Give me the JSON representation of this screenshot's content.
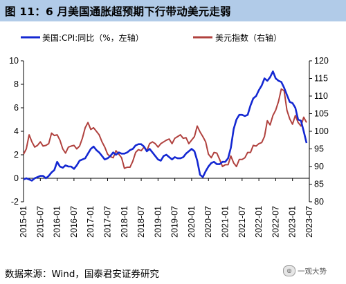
{
  "header": {
    "title": "图 11：6 月美国通胀超预期下行带动美元走弱"
  },
  "source": {
    "text": "数据来源：Wind，国泰君安证券研究"
  },
  "watermark": {
    "text": "一观大势"
  },
  "colors": {
    "header_bg": "#b1cbe8",
    "cpi": "#1428d2",
    "dxy": "#b0413e",
    "axis": "#000000"
  },
  "chart_data": {
    "type": "line",
    "title": "",
    "x_tick_labels": [
      "2015-01",
      "2015-07",
      "2016-01",
      "2016-07",
      "2017-01",
      "2017-07",
      "2018-01",
      "2018-07",
      "2019-01",
      "2019-07",
      "2020-01",
      "2020-07",
      "2021-01",
      "2021-07",
      "2022-01",
      "2022-07",
      "2023-01",
      "2023-07"
    ],
    "x_range": [
      "2015-01",
      "2023-07"
    ],
    "y_left": {
      "range": [
        -2,
        10
      ],
      "ticks": [
        -2,
        0,
        2,
        4,
        6,
        8,
        10
      ]
    },
    "y_right": {
      "range": [
        80,
        120
      ],
      "ticks": [
        80,
        85,
        90,
        95,
        100,
        105,
        110,
        115,
        120
      ]
    },
    "legend_position": "top",
    "grid": false,
    "series": [
      {
        "name": "美国:CPI:同比（%，左轴）",
        "axis": "left",
        "color": "#1428d2",
        "points": [
          [
            "2015-01",
            -0.1
          ],
          [
            "2015-02",
            0.0
          ],
          [
            "2015-03",
            -0.1
          ],
          [
            "2015-04",
            -0.2
          ],
          [
            "2015-05",
            0.0
          ],
          [
            "2015-06",
            0.1
          ],
          [
            "2015-07",
            0.2
          ],
          [
            "2015-08",
            0.2
          ],
          [
            "2015-09",
            0.0
          ],
          [
            "2015-10",
            0.2
          ],
          [
            "2015-11",
            0.5
          ],
          [
            "2015-12",
            0.7
          ],
          [
            "2016-01",
            1.4
          ],
          [
            "2016-02",
            1.0
          ],
          [
            "2016-03",
            0.9
          ],
          [
            "2016-04",
            1.1
          ],
          [
            "2016-05",
            1.0
          ],
          [
            "2016-06",
            1.0
          ],
          [
            "2016-07",
            0.8
          ],
          [
            "2016-08",
            1.1
          ],
          [
            "2016-09",
            1.5
          ],
          [
            "2016-10",
            1.6
          ],
          [
            "2016-11",
            1.7
          ],
          [
            "2016-12",
            2.1
          ],
          [
            "2017-01",
            2.5
          ],
          [
            "2017-02",
            2.7
          ],
          [
            "2017-03",
            2.4
          ],
          [
            "2017-04",
            2.2
          ],
          [
            "2017-05",
            1.9
          ],
          [
            "2017-06",
            1.6
          ],
          [
            "2017-07",
            1.7
          ],
          [
            "2017-08",
            1.9
          ],
          [
            "2017-09",
            2.2
          ],
          [
            "2017-10",
            2.0
          ],
          [
            "2017-11",
            2.2
          ],
          [
            "2017-12",
            2.1
          ],
          [
            "2018-01",
            2.1
          ],
          [
            "2018-02",
            2.2
          ],
          [
            "2018-03",
            2.4
          ],
          [
            "2018-04",
            2.5
          ],
          [
            "2018-05",
            2.8
          ],
          [
            "2018-06",
            2.9
          ],
          [
            "2018-07",
            2.9
          ],
          [
            "2018-08",
            2.7
          ],
          [
            "2018-09",
            2.3
          ],
          [
            "2018-10",
            2.5
          ],
          [
            "2018-11",
            2.2
          ],
          [
            "2018-12",
            1.9
          ],
          [
            "2019-01",
            1.6
          ],
          [
            "2019-02",
            1.5
          ],
          [
            "2019-03",
            1.9
          ],
          [
            "2019-04",
            2.0
          ],
          [
            "2019-05",
            1.8
          ],
          [
            "2019-06",
            1.6
          ],
          [
            "2019-07",
            1.8
          ],
          [
            "2019-08",
            1.7
          ],
          [
            "2019-09",
            1.7
          ],
          [
            "2019-10",
            1.8
          ],
          [
            "2019-11",
            2.1
          ],
          [
            "2019-12",
            2.3
          ],
          [
            "2020-01",
            2.5
          ],
          [
            "2020-02",
            2.3
          ],
          [
            "2020-03",
            1.5
          ],
          [
            "2020-04",
            0.3
          ],
          [
            "2020-05",
            0.1
          ],
          [
            "2020-06",
            0.6
          ],
          [
            "2020-07",
            1.0
          ],
          [
            "2020-08",
            1.3
          ],
          [
            "2020-09",
            1.4
          ],
          [
            "2020-10",
            1.2
          ],
          [
            "2020-11",
            1.2
          ],
          [
            "2020-12",
            1.4
          ],
          [
            "2021-01",
            1.4
          ],
          [
            "2021-02",
            1.7
          ],
          [
            "2021-03",
            2.6
          ],
          [
            "2021-04",
            4.2
          ],
          [
            "2021-05",
            5.0
          ],
          [
            "2021-06",
            5.4
          ],
          [
            "2021-07",
            5.4
          ],
          [
            "2021-08",
            5.3
          ],
          [
            "2021-09",
            5.4
          ],
          [
            "2021-10",
            6.2
          ],
          [
            "2021-11",
            6.8
          ],
          [
            "2021-12",
            7.0
          ],
          [
            "2022-01",
            7.5
          ],
          [
            "2022-02",
            7.9
          ],
          [
            "2022-03",
            8.5
          ],
          [
            "2022-04",
            8.3
          ],
          [
            "2022-05",
            8.6
          ],
          [
            "2022-06",
            9.1
          ],
          [
            "2022-07",
            8.5
          ],
          [
            "2022-08",
            8.3
          ],
          [
            "2022-09",
            8.2
          ],
          [
            "2022-10",
            7.7
          ],
          [
            "2022-11",
            7.1
          ],
          [
            "2022-12",
            6.5
          ],
          [
            "2023-01",
            6.4
          ],
          [
            "2023-02",
            6.0
          ],
          [
            "2023-03",
            5.0
          ],
          [
            "2023-04",
            4.9
          ],
          [
            "2023-05",
            4.0
          ],
          [
            "2023-06",
            3.0
          ]
        ]
      },
      {
        "name": "美元指数（右轴）",
        "axis": "right",
        "color": "#b0413e",
        "points": [
          [
            "2015-01",
            93.5
          ],
          [
            "2015-02",
            95.0
          ],
          [
            "2015-03",
            99.0
          ],
          [
            "2015-04",
            97.0
          ],
          [
            "2015-05",
            95.5
          ],
          [
            "2015-06",
            96.0
          ],
          [
            "2015-07",
            97.0
          ],
          [
            "2015-08",
            95.8
          ],
          [
            "2015-09",
            96.0
          ],
          [
            "2015-10",
            96.5
          ],
          [
            "2015-11",
            99.5
          ],
          [
            "2015-12",
            98.8
          ],
          [
            "2016-01",
            99.0
          ],
          [
            "2016-02",
            97.5
          ],
          [
            "2016-03",
            95.0
          ],
          [
            "2016-04",
            93.8
          ],
          [
            "2016-05",
            95.5
          ],
          [
            "2016-06",
            95.8
          ],
          [
            "2016-07",
            96.0
          ],
          [
            "2016-08",
            95.0
          ],
          [
            "2016-09",
            95.8
          ],
          [
            "2016-10",
            98.0
          ],
          [
            "2016-11",
            101.0
          ],
          [
            "2016-12",
            102.5
          ],
          [
            "2017-01",
            100.5
          ],
          [
            "2017-02",
            101.0
          ],
          [
            "2017-03",
            100.0
          ],
          [
            "2017-04",
            99.0
          ],
          [
            "2017-05",
            97.0
          ],
          [
            "2017-06",
            95.5
          ],
          [
            "2017-07",
            93.5
          ],
          [
            "2017-08",
            92.8
          ],
          [
            "2017-09",
            92.5
          ],
          [
            "2017-10",
            94.5
          ],
          [
            "2017-11",
            93.5
          ],
          [
            "2017-12",
            92.5
          ],
          [
            "2018-01",
            89.5
          ],
          [
            "2018-02",
            89.8
          ],
          [
            "2018-03",
            89.8
          ],
          [
            "2018-04",
            91.5
          ],
          [
            "2018-05",
            94.0
          ],
          [
            "2018-06",
            94.8
          ],
          [
            "2018-07",
            94.5
          ],
          [
            "2018-08",
            95.5
          ],
          [
            "2018-09",
            94.5
          ],
          [
            "2018-10",
            96.5
          ],
          [
            "2018-11",
            97.0
          ],
          [
            "2018-12",
            96.5
          ],
          [
            "2019-01",
            95.5
          ],
          [
            "2019-02",
            96.5
          ],
          [
            "2019-03",
            97.0
          ],
          [
            "2019-04",
            97.5
          ],
          [
            "2019-05",
            97.8
          ],
          [
            "2019-06",
            96.5
          ],
          [
            "2019-07",
            98.0
          ],
          [
            "2019-08",
            98.5
          ],
          [
            "2019-09",
            99.0
          ],
          [
            "2019-10",
            98.0
          ],
          [
            "2019-11",
            98.2
          ],
          [
            "2019-12",
            96.5
          ],
          [
            "2020-01",
            97.5
          ],
          [
            "2020-02",
            98.5
          ],
          [
            "2020-03",
            101.5
          ],
          [
            "2020-04",
            99.8
          ],
          [
            "2020-05",
            98.5
          ],
          [
            "2020-06",
            97.0
          ],
          [
            "2020-07",
            93.5
          ],
          [
            "2020-08",
            92.5
          ],
          [
            "2020-09",
            94.0
          ],
          [
            "2020-10",
            93.8
          ],
          [
            "2020-11",
            92.0
          ],
          [
            "2020-12",
            90.0
          ],
          [
            "2021-01",
            90.5
          ],
          [
            "2021-02",
            90.5
          ],
          [
            "2021-03",
            93.0
          ],
          [
            "2021-04",
            91.0
          ],
          [
            "2021-05",
            90.0
          ],
          [
            "2021-06",
            92.0
          ],
          [
            "2021-07",
            92.0
          ],
          [
            "2021-08",
            92.5
          ],
          [
            "2021-09",
            94.0
          ],
          [
            "2021-10",
            94.0
          ],
          [
            "2021-11",
            96.0
          ],
          [
            "2021-12",
            95.8
          ],
          [
            "2022-01",
            96.5
          ],
          [
            "2022-02",
            96.8
          ],
          [
            "2022-03",
            98.5
          ],
          [
            "2022-04",
            103.0
          ],
          [
            "2022-05",
            101.8
          ],
          [
            "2022-06",
            104.5
          ],
          [
            "2022-07",
            106.0
          ],
          [
            "2022-08",
            108.5
          ],
          [
            "2022-09",
            112.0
          ],
          [
            "2022-10",
            111.5
          ],
          [
            "2022-11",
            106.0
          ],
          [
            "2022-12",
            103.5
          ],
          [
            "2023-01",
            102.0
          ],
          [
            "2023-02",
            104.5
          ],
          [
            "2023-03",
            102.5
          ],
          [
            "2023-04",
            101.5
          ],
          [
            "2023-05",
            104.0
          ],
          [
            "2023-06",
            102.5
          ]
        ]
      }
    ]
  }
}
